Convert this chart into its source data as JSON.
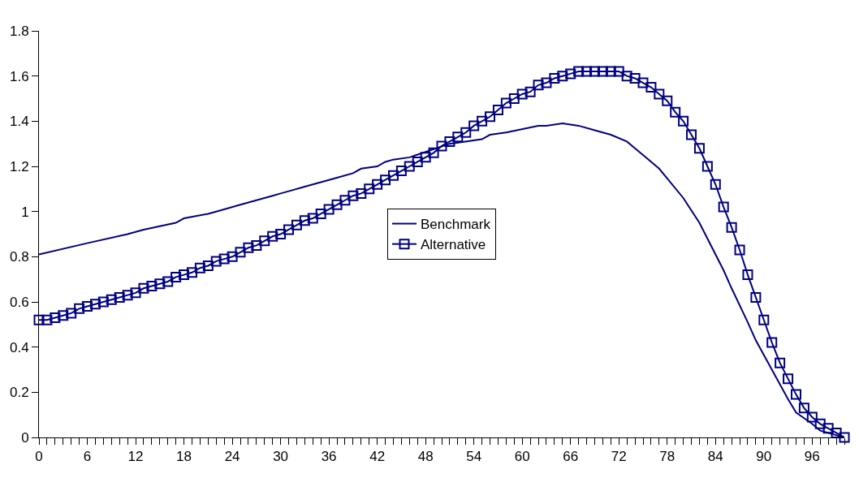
{
  "chart_data": {
    "type": "line",
    "legend": "center",
    "xlim": [
      0,
      100
    ],
    "xticks": [
      0,
      {
        "value": 1,
        "label": null
      },
      {
        "value": 2,
        "label": null
      },
      {
        "value": 3,
        "label": null
      },
      {
        "value": 4,
        "label": null
      },
      {
        "value": 5,
        "label": null
      },
      6,
      {
        "value": 7,
        "label": null
      },
      {
        "value": 8,
        "label": null
      },
      {
        "value": 9,
        "label": null
      },
      {
        "value": 10,
        "label": null
      },
      {
        "value": 11,
        "label": null
      },
      12,
      {
        "value": 13,
        "label": null
      },
      {
        "value": 14,
        "label": null
      },
      {
        "value": 15,
        "label": null
      },
      {
        "value": 16,
        "label": null
      },
      {
        "value": 17,
        "label": null
      },
      18,
      {
        "value": 19,
        "label": null
      },
      {
        "value": 20,
        "label": null
      },
      {
        "value": 21,
        "label": null
      },
      {
        "value": 22,
        "label": null
      },
      {
        "value": 23,
        "label": null
      },
      24,
      {
        "value": 25,
        "label": null
      },
      {
        "value": 26,
        "label": null
      },
      {
        "value": 27,
        "label": null
      },
      {
        "value": 28,
        "label": null
      },
      {
        "value": 29,
        "label": null
      },
      30,
      {
        "value": 31,
        "label": null
      },
      {
        "value": 32,
        "label": null
      },
      {
        "value": 33,
        "label": null
      },
      {
        "value": 34,
        "label": null
      },
      {
        "value": 35,
        "label": null
      },
      36,
      {
        "value": 37,
        "label": null
      },
      {
        "value": 38,
        "label": null
      },
      {
        "value": 39,
        "label": null
      },
      {
        "value": 40,
        "label": null
      },
      {
        "value": 41,
        "label": null
      },
      42,
      {
        "value": 43,
        "label": null
      },
      {
        "value": 44,
        "label": null
      },
      {
        "value": 45,
        "label": null
      },
      {
        "value": 46,
        "label": null
      },
      {
        "value": 47,
        "label": null
      },
      48,
      {
        "value": 49,
        "label": null
      },
      {
        "value": 50,
        "label": null
      },
      {
        "value": 51,
        "label": null
      },
      {
        "value": 52,
        "label": null
      },
      {
        "value": 53,
        "label": null
      },
      54,
      {
        "value": 55,
        "label": null
      },
      {
        "value": 56,
        "label": null
      },
      {
        "value": 57,
        "label": null
      },
      {
        "value": 58,
        "label": null
      },
      {
        "value": 59,
        "label": null
      },
      60,
      {
        "value": 61,
        "label": null
      },
      {
        "value": 62,
        "label": null
      },
      {
        "value": 63,
        "label": null
      },
      {
        "value": 64,
        "label": null
      },
      {
        "value": 65,
        "label": null
      },
      66,
      {
        "value": 67,
        "label": null
      },
      {
        "value": 68,
        "label": null
      },
      {
        "value": 69,
        "label": null
      },
      {
        "value": 70,
        "label": null
      },
      {
        "value": 71,
        "label": null
      },
      72,
      {
        "value": 73,
        "label": null
      },
      {
        "value": 74,
        "label": null
      },
      {
        "value": 75,
        "label": null
      },
      {
        "value": 76,
        "label": null
      },
      {
        "value": 77,
        "label": null
      },
      78,
      {
        "value": 79,
        "label": null
      },
      {
        "value": 80,
        "label": null
      },
      {
        "value": 81,
        "label": null
      },
      {
        "value": 82,
        "label": null
      },
      {
        "value": 83,
        "label": null
      },
      84,
      {
        "value": 85,
        "label": null
      },
      {
        "value": 86,
        "label": null
      },
      {
        "value": 87,
        "label": null
      },
      {
        "value": 88,
        "label": null
      },
      {
        "value": 89,
        "label": null
      },
      90,
      {
        "value": 91,
        "label": null
      },
      {
        "value": 92,
        "label": null
      },
      {
        "value": 93,
        "label": null
      },
      {
        "value": 94,
        "label": null
      },
      {
        "value": 95,
        "label": null
      },
      96,
      {
        "value": 97,
        "label": null
      },
      {
        "value": 98,
        "label": null
      },
      {
        "value": 99,
        "label": null
      },
      {
        "value": 100,
        "label": null
      }
    ],
    "ylim": [
      0,
      1.8
    ],
    "yticks": [
      0,
      0.2,
      0.4,
      0.6,
      0.8,
      1,
      1.2,
      1.4,
      1.6,
      1.8
    ],
    "series": [
      {
        "name": "Benchmark",
        "color": "#000080",
        "marker": "none",
        "x": [
          0,
          6,
          11,
          13,
          17,
          18,
          21,
          22,
          25,
          26,
          29,
          30,
          31,
          33,
          34,
          36,
          37,
          39,
          40,
          42,
          43,
          44,
          46,
          51,
          55,
          56,
          58,
          62,
          63,
          65,
          67,
          69,
          71,
          73,
          74,
          75,
          77,
          80,
          82,
          83,
          85,
          86,
          88,
          89,
          91,
          93,
          94,
          96,
          97,
          100
        ],
        "values": [
          0.81,
          0.86,
          0.9,
          0.92,
          0.95,
          0.97,
          0.99,
          1.0,
          1.03,
          1.04,
          1.07,
          1.08,
          1.09,
          1.11,
          1.12,
          1.14,
          1.15,
          1.17,
          1.19,
          1.2,
          1.22,
          1.23,
          1.24,
          1.3,
          1.32,
          1.34,
          1.35,
          1.38,
          1.38,
          1.39,
          1.38,
          1.36,
          1.34,
          1.31,
          1.28,
          1.25,
          1.19,
          1.06,
          0.95,
          0.88,
          0.74,
          0.66,
          0.51,
          0.43,
          0.3,
          0.17,
          0.11,
          0.06,
          0.03,
          0.0
        ]
      },
      {
        "name": "Alternative",
        "color": "#000080",
        "marker": "square",
        "x": [
          0,
          1,
          2,
          3,
          4,
          5,
          6,
          7,
          8,
          9,
          10,
          11,
          12,
          13,
          14,
          15,
          16,
          17,
          18,
          19,
          20,
          21,
          22,
          23,
          24,
          25,
          26,
          27,
          28,
          29,
          30,
          31,
          32,
          33,
          34,
          35,
          36,
          37,
          38,
          39,
          40,
          41,
          42,
          43,
          44,
          45,
          46,
          47,
          48,
          49,
          50,
          51,
          52,
          53,
          54,
          55,
          56,
          57,
          58,
          59,
          60,
          61,
          62,
          63,
          64,
          65,
          66,
          67,
          68,
          69,
          70,
          71,
          72,
          73,
          74,
          75,
          76,
          77,
          78,
          79,
          80,
          81,
          82,
          83,
          84,
          85,
          86,
          87,
          88,
          89,
          90,
          91,
          92,
          93,
          94,
          95,
          96,
          97,
          98,
          99,
          100
        ],
        "values": [
          0.52,
          0.52,
          0.53,
          0.54,
          0.55,
          0.57,
          0.58,
          0.59,
          0.6,
          0.61,
          0.62,
          0.63,
          0.64,
          0.66,
          0.67,
          0.68,
          0.69,
          0.71,
          0.72,
          0.73,
          0.75,
          0.76,
          0.78,
          0.79,
          0.8,
          0.82,
          0.84,
          0.85,
          0.87,
          0.89,
          0.9,
          0.92,
          0.94,
          0.96,
          0.97,
          0.99,
          1.01,
          1.03,
          1.05,
          1.07,
          1.08,
          1.1,
          1.12,
          1.14,
          1.16,
          1.18,
          1.2,
          1.22,
          1.24,
          1.26,
          1.29,
          1.31,
          1.33,
          1.35,
          1.38,
          1.4,
          1.42,
          1.45,
          1.48,
          1.5,
          1.52,
          1.53,
          1.56,
          1.57,
          1.59,
          1.6,
          1.61,
          1.62,
          1.62,
          1.62,
          1.62,
          1.62,
          1.62,
          1.6,
          1.59,
          1.57,
          1.55,
          1.52,
          1.49,
          1.44,
          1.4,
          1.34,
          1.28,
          1.2,
          1.12,
          1.02,
          0.93,
          0.83,
          0.72,
          0.62,
          0.52,
          0.42,
          0.33,
          0.26,
          0.19,
          0.13,
          0.09,
          0.06,
          0.04,
          0.02,
          0.0
        ]
      }
    ]
  }
}
